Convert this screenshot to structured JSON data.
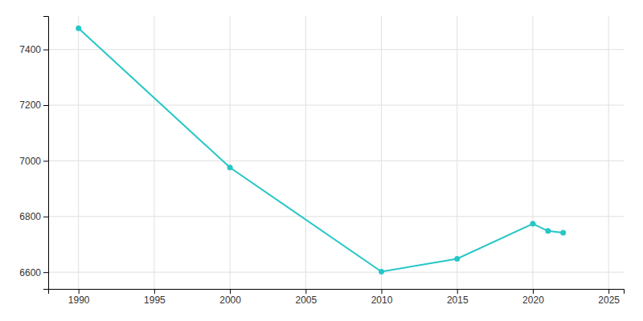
{
  "chart_data": {
    "type": "line",
    "x": [
      1990,
      2000,
      2010,
      2015,
      2020,
      2021,
      2022
    ],
    "values": [
      7476,
      6976,
      6602,
      6648,
      6774,
      6748,
      6742
    ],
    "color": "#26C6C6",
    "marker": "circle",
    "xlim": [
      1988,
      2026
    ],
    "ylim": [
      6540,
      7520
    ],
    "xticks": [
      1990,
      1995,
      2000,
      2005,
      2010,
      2015,
      2020,
      2025
    ],
    "yticks": [
      6600,
      6800,
      7000,
      7200,
      7400
    ],
    "grid": true
  }
}
